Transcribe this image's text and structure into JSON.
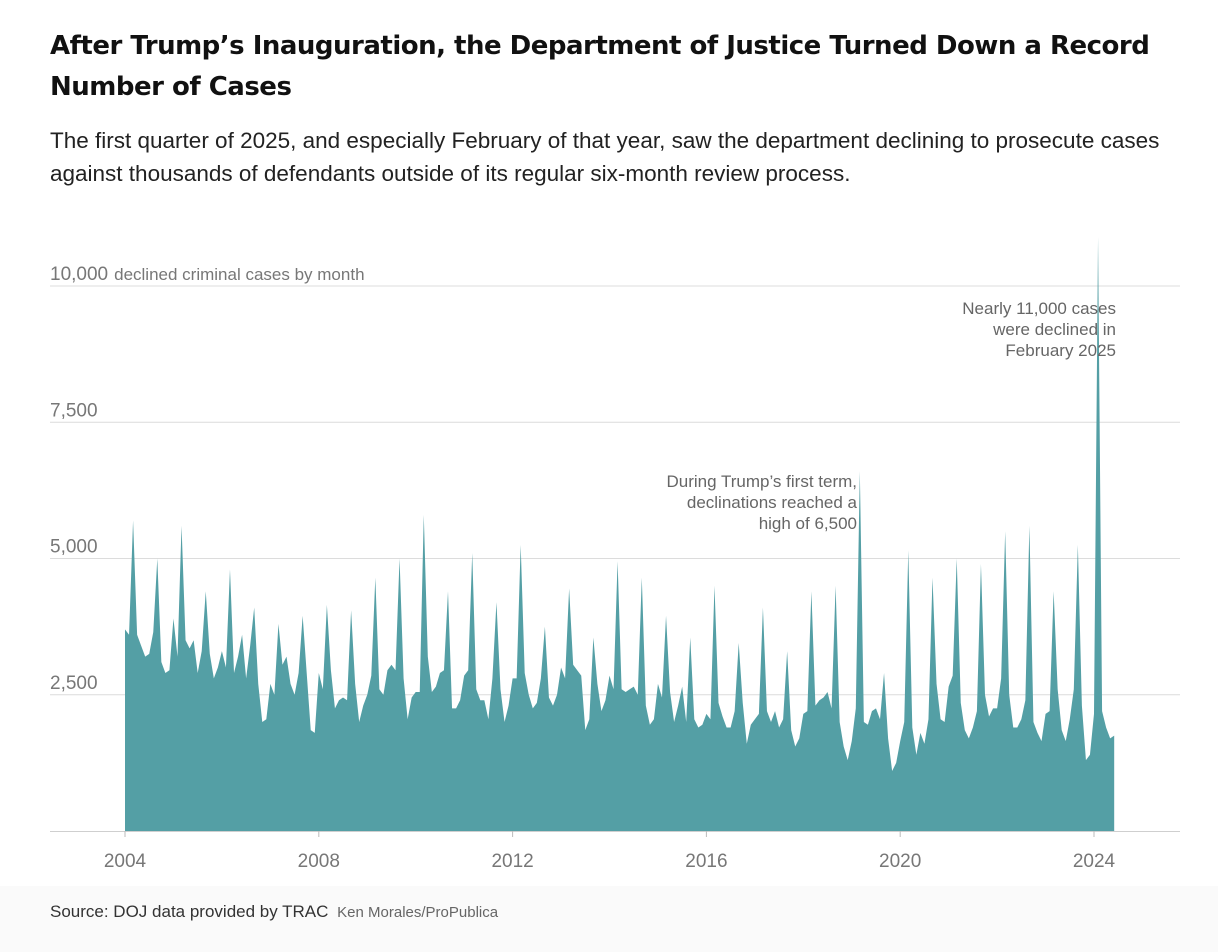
{
  "title": "After Trump’s Inauguration, the Department of Justice Turned Down a Record Number of Cases",
  "subtitle": "The first quarter of 2025, and especially February of that year, saw the department declining to prosecute cases against thousands of defendants outside of its regular six-month review process.",
  "source": "Source: DOJ data provided by TRAC",
  "credit": "Ken Morales/ProPublica",
  "colors": {
    "area": "#549fa5",
    "grid": "#dcdcdc",
    "axis_text": "#777777",
    "annotation": "#666666"
  },
  "chart_data": {
    "type": "area",
    "ylabel": "declined criminal cases by month",
    "ylim": [
      0,
      10000
    ],
    "xlim": [
      2003.75,
      2025.75
    ],
    "y_ticks": [
      {
        "value": 10000,
        "label": "10,000"
      },
      {
        "value": 7500,
        "label": "7,500"
      },
      {
        "value": 5000,
        "label": "5,000"
      },
      {
        "value": 2500,
        "label": "2,500"
      }
    ],
    "x_ticks": [
      {
        "value": 2004,
        "label": "2004"
      },
      {
        "value": 2008,
        "label": "2008"
      },
      {
        "value": 2012,
        "label": "2012"
      },
      {
        "value": 2016,
        "label": "2016"
      },
      {
        "value": 2020,
        "label": "2020"
      },
      {
        "value": 2024,
        "label": "2024"
      }
    ],
    "grid": true,
    "series": [
      {
        "values": [
          3700,
          3600,
          5700,
          3600,
          3400,
          3200,
          3250,
          3650,
          5000,
          3100,
          2900,
          2950,
          3900,
          3200,
          5600,
          3500,
          3350,
          3500,
          2900,
          3300,
          4400,
          3250,
          2800,
          3000,
          3300,
          3000,
          4800,
          2900,
          3200,
          3600,
          2800,
          3400,
          4100,
          2700,
          2000,
          2050,
          2700,
          2500,
          3800,
          3050,
          3200,
          2700,
          2500,
          2900,
          3950,
          2900,
          1850,
          1800,
          2900,
          2600,
          4150,
          2950,
          2250,
          2400,
          2450,
          2400,
          4050,
          2700,
          2000,
          2300,
          2500,
          2850,
          4650,
          2600,
          2500,
          2950,
          3050,
          2950,
          5000,
          2800,
          2050,
          2450,
          2550,
          2550,
          5800,
          3200,
          2550,
          2650,
          2900,
          2950,
          4400,
          2250,
          2250,
          2400,
          2850,
          2950,
          5100,
          2600,
          2400,
          2400,
          2050,
          2800,
          4200,
          2600,
          2000,
          2300,
          2800,
          2800,
          5250,
          2900,
          2500,
          2250,
          2350,
          2800,
          3750,
          2450,
          2300,
          2500,
          3000,
          2800,
          4450,
          3050,
          2950,
          2850,
          1850,
          2050,
          3550,
          2700,
          2200,
          2400,
          2850,
          2600,
          4950,
          2600,
          2550,
          2600,
          2650,
          2500,
          4650,
          2300,
          1950,
          2050,
          2700,
          2450,
          3950,
          2550,
          2000,
          2300,
          2650,
          2000,
          3550,
          2050,
          1900,
          1950,
          2150,
          2050,
          4500,
          2350,
          2100,
          1900,
          1900,
          2200,
          3450,
          2350,
          1600,
          1950,
          2050,
          2150,
          4100,
          2200,
          2000,
          2200,
          1900,
          2050,
          3300,
          1850,
          1550,
          1700,
          2150,
          2200,
          4400,
          2300,
          2400,
          2450,
          2550,
          2250,
          4500,
          2000,
          1550,
          1300,
          1650,
          2250,
          6600,
          2000,
          1950,
          2200,
          2250,
          2050,
          2900,
          1700,
          1100,
          1250,
          1650,
          2000,
          5150,
          1900,
          1400,
          1800,
          1600,
          2050,
          4650,
          2700,
          2050,
          2000,
          2650,
          2850,
          5000,
          2350,
          1850,
          1700,
          1900,
          2200,
          4900,
          2500,
          2100,
          2250,
          2250,
          2800,
          5500,
          2500,
          1900,
          1900,
          2050,
          2400,
          5600,
          2000,
          1800,
          1650,
          2150,
          2200,
          4400,
          2600,
          1850,
          1650,
          2050,
          2600,
          5250,
          2300,
          1300,
          1400,
          2150,
          10900,
          2200,
          1900,
          1700,
          1750
        ]
      }
    ],
    "annotations": [
      {
        "x": 2019.75,
        "lines": [
          "During Trump’s first term,",
          "declinations reached a",
          "high of 6,500"
        ]
      },
      {
        "x": 2025.08,
        "lines": [
          "Nearly 11,000 cases",
          "were declined in",
          "February 2025"
        ]
      }
    ]
  }
}
